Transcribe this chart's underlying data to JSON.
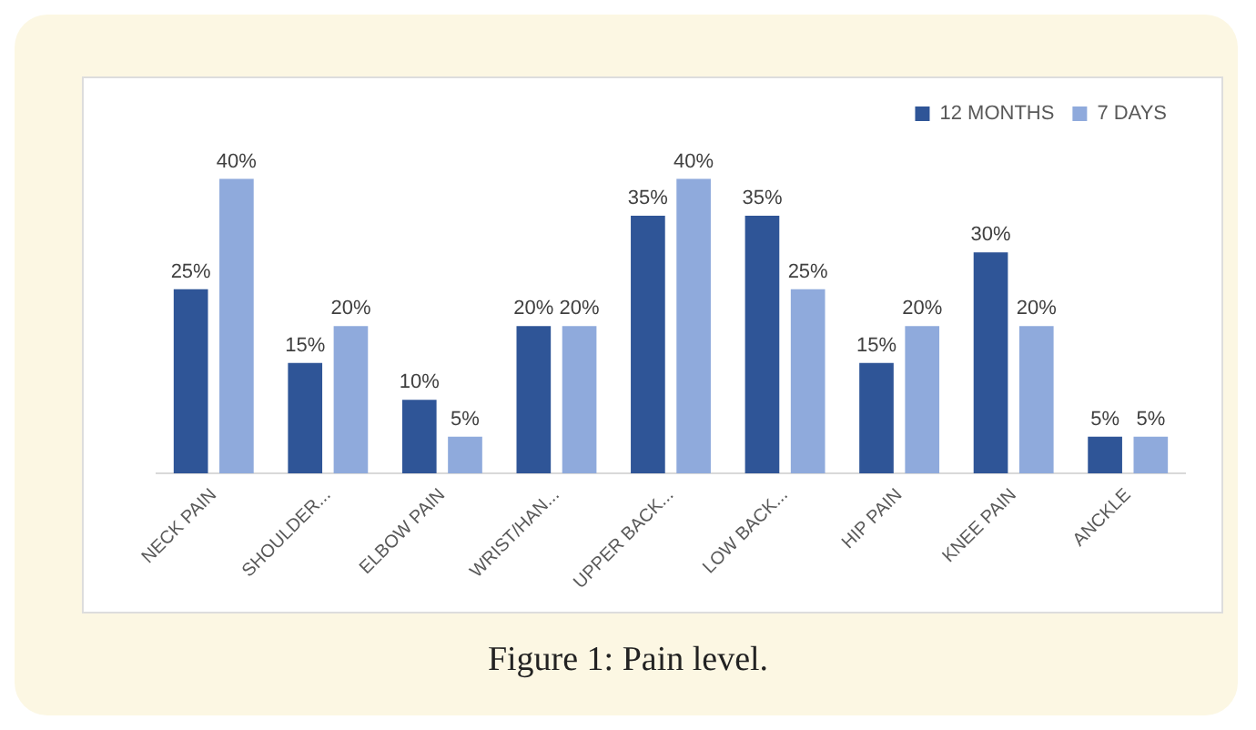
{
  "chart_data": {
    "type": "bar",
    "categories": [
      "NECK PAIN",
      "SHOULDER...",
      "ELBOW PAIN",
      "WRIST/HAN...",
      "UPPER BACK...",
      "LOW BACK...",
      "HIP PAIN",
      "KNEE PAIN",
      "ANCKLE"
    ],
    "series": [
      {
        "name": "12 MONTHS",
        "color": "#2f5597",
        "values": [
          25,
          15,
          10,
          20,
          35,
          35,
          15,
          30,
          5
        ],
        "value_labels": [
          "25%",
          "15%",
          "10%",
          "20%",
          "35%",
          "35%",
          "15%",
          "30%",
          "5%"
        ]
      },
      {
        "name": "7 DAYS",
        "color": "#8faadc",
        "values": [
          40,
          20,
          5,
          20,
          40,
          25,
          20,
          20,
          5
        ],
        "value_labels": [
          "40%",
          "20%",
          "5%",
          "20%",
          "40%",
          "25%",
          "20%",
          "20%",
          "5%"
        ]
      }
    ],
    "tick_labels": "x",
    "grid": false,
    "legend": "top right",
    "annotations": [
      "Figure 1: Pain level."
    ]
  }
}
